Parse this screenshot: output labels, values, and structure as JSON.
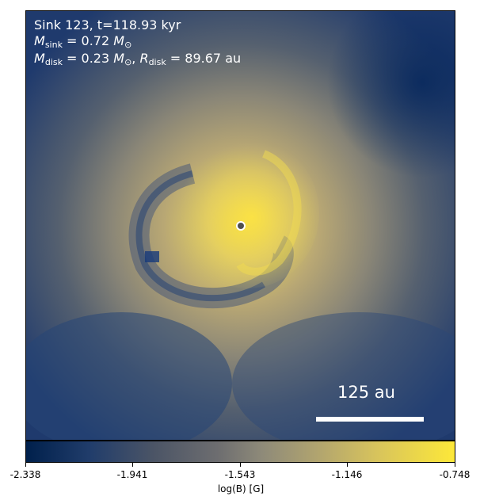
{
  "image": {
    "overlay_lines": [
      {
        "kind": "plain",
        "text": "Sink 123, t=118.93 kyr"
      },
      {
        "kind": "math",
        "sym": "M",
        "sub": "sink",
        "value": " = 0.72 ",
        "unit": "M",
        "unit_sub": "⊙",
        "tail": ""
      },
      {
        "kind": "math2",
        "text_a_sym": "M",
        "text_a_sub": "disk",
        "text_a_val": " = 0.23 ",
        "text_a_unit": "M",
        "text_a_unit_sub": "⊙",
        "sep": ", ",
        "text_b_sym": "R",
        "text_b_sub": "disk",
        "text_b_val": " = 89.67 au"
      }
    ],
    "scale_bar_label": "125 au"
  },
  "colorbar": {
    "ticks": [
      "-2.338",
      "-1.941",
      "-1.543",
      "-1.146",
      "-0.748"
    ],
    "label": "log(B) [G]"
  },
  "colors": {
    "background_dark": "#00204c",
    "mid_gray": "#7a7a76",
    "bright_yellow": "#fde839"
  }
}
